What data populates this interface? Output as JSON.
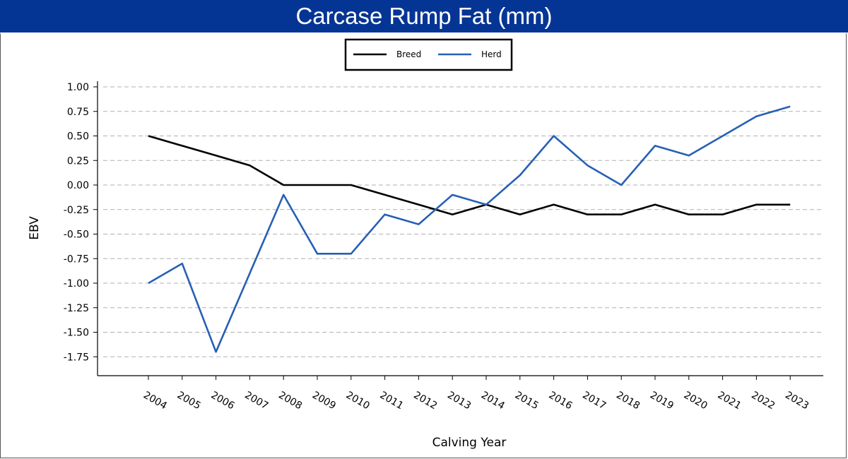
{
  "header": {
    "title": "Carcase Rump Fat (mm)"
  },
  "colors": {
    "header_bg": "#053594",
    "breed": "#000000",
    "herd": "#2660b5",
    "grid": "#b0b0b0"
  },
  "chart_data": {
    "type": "line",
    "title": "Carcase Rump Fat (mm)",
    "xlabel": "Calving Year",
    "ylabel": "EBV",
    "categories": [
      "2004",
      "2005",
      "2006",
      "2007",
      "2008",
      "2009",
      "2010",
      "2011",
      "2012",
      "2013",
      "2014",
      "2015",
      "2016",
      "2017",
      "2018",
      "2019",
      "2020",
      "2021",
      "2022",
      "2023"
    ],
    "series": [
      {
        "name": "Breed",
        "values": [
          0.5,
          0.4,
          0.3,
          0.2,
          0.0,
          0.0,
          0.0,
          -0.1,
          -0.2,
          -0.3,
          -0.2,
          -0.3,
          -0.2,
          -0.3,
          -0.3,
          -0.2,
          -0.3,
          -0.3,
          -0.2,
          -0.2
        ]
      },
      {
        "name": "Herd",
        "values": [
          -1.0,
          -0.8,
          -1.7,
          -0.9,
          -0.1,
          -0.7,
          -0.7,
          -0.3,
          -0.4,
          -0.1,
          -0.2,
          0.1,
          0.5,
          0.2,
          0.0,
          0.4,
          0.3,
          0.5,
          0.7,
          0.8
        ]
      }
    ],
    "yticks": [
      "1.00",
      "0.75",
      "0.50",
      "0.25",
      "0.00",
      "-0.25",
      "-0.50",
      "-0.75",
      "-1.00",
      "-1.25",
      "-1.50",
      "-1.75"
    ],
    "ylim": [
      -1.95,
      1.05
    ],
    "grid": "horizontal-dashed",
    "legend_position": "top-center"
  }
}
